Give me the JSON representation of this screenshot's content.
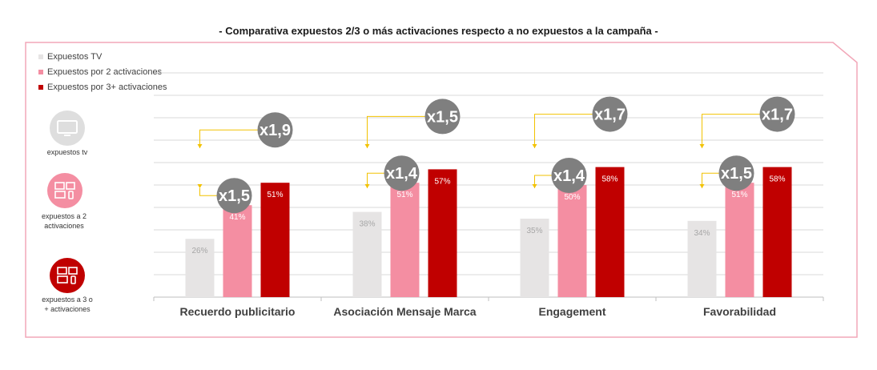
{
  "title": "- Comparativa expuestos 2/3 o más activaciones respecto a no expuestos a la campaña -",
  "legend": [
    {
      "label": "Expuestos TV",
      "color": "#e6e4e4"
    },
    {
      "label": "Expuestos por 2 activaciones",
      "color": "#f48ea2"
    },
    {
      "label": "Expuestos por 3+ activaciones",
      "color": "#c00000"
    }
  ],
  "side_panel": [
    {
      "label_lines": [
        "expuestos tv"
      ],
      "color": "#dedede",
      "icon": "tv-icon"
    },
    {
      "label_lines": [
        "expuestos a 2",
        "activaciones"
      ],
      "color": "#f48ea2",
      "icon": "multi-device-icon"
    },
    {
      "label_lines": [
        "expuestos a 3 o",
        "+ activaciones"
      ],
      "color": "#c00000",
      "icon": "multi-device-icon"
    }
  ],
  "chart_data": {
    "type": "bar",
    "categories": [
      "Recuerdo publicitario",
      "Asociación Mensaje Marca",
      "Engagement",
      "Favorabilidad"
    ],
    "series": [
      {
        "name": "Expuestos TV",
        "color": "#e6e4e4",
        "label_color": "#a6a6a6",
        "values": [
          26,
          38,
          35,
          34
        ],
        "labels": [
          "26%",
          "38%",
          "35%",
          "34%"
        ]
      },
      {
        "name": "Expuestos por 2 activaciones",
        "color": "#f48ea2",
        "label_color": "#ffffff",
        "values": [
          41,
          51,
          50,
          51
        ],
        "labels": [
          "41%",
          "51%",
          "50%",
          "51%"
        ]
      },
      {
        "name": "Expuestos por 3+ activaciones",
        "color": "#c00000",
        "label_color": "#ffffff",
        "values": [
          51,
          57,
          58,
          58
        ],
        "labels": [
          "51%",
          "57%",
          "58%",
          "58%"
        ]
      }
    ],
    "ylim": [
      0,
      100
    ],
    "grid": true,
    "legend_position": "top-left",
    "multipliers": [
      {
        "x2": "x1,5",
        "x3": "x1,9"
      },
      {
        "x2": "x1,4",
        "x3": "x1,5"
      },
      {
        "x2": "x1,4",
        "x3": "x1,7"
      },
      {
        "x2": "x1,5",
        "x3": "x1,7"
      }
    ],
    "colors": {
      "grid": "#d9d9d9",
      "axis": "#bfbfbf",
      "arrow": "#f2c200",
      "bubble": "#7f7f7f",
      "category_text": "#404040"
    }
  }
}
